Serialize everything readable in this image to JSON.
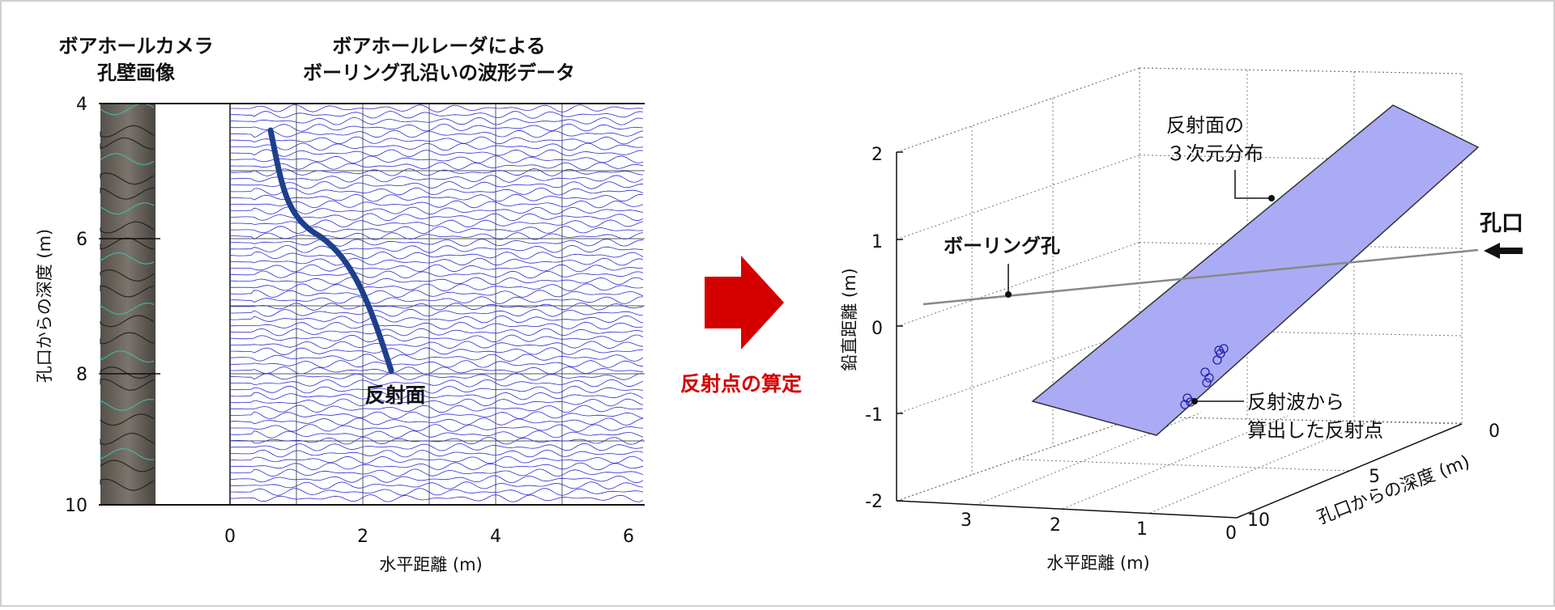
{
  "left_panel": {
    "camera_title_line1": "ボアホールカメラ",
    "camera_title_line2": "孔壁画像",
    "radar_title_line1": "ボアホールレーダによる",
    "radar_title_line2": "ボーリング孔沿いの波形データ",
    "y_axis_label": "孔口からの深度 (m)",
    "y_ticks": [
      "4",
      "6",
      "8",
      "10"
    ],
    "x_ticks": [
      "0",
      "2",
      "4",
      "6"
    ],
    "x_axis_label": "水平距離 (m)",
    "reflector_label": "反射面"
  },
  "arrow": {
    "label": "反射点の算定",
    "color": "#d40000"
  },
  "right_panel": {
    "z_axis_label": "鉛直距離 (m)",
    "z_ticks": [
      "2",
      "1",
      "0",
      "-1",
      "-2"
    ],
    "x_axis_label": "水平距離 (m)",
    "x_ticks": [
      "3",
      "2",
      "1",
      "0"
    ],
    "depth_axis_label": "孔口からの深度 (m)",
    "depth_ticks": [
      "0",
      "5",
      "10"
    ],
    "plane_label_line1": "反射面の",
    "plane_label_line2": "３次元分布",
    "borehole_label": "ボーリング孔",
    "collar_label": "孔口",
    "points_label_line1": "反射波から",
    "points_label_line2": "算出した反射点",
    "plane_color": "#aaaaf5",
    "point_color": "#2222aa"
  }
}
